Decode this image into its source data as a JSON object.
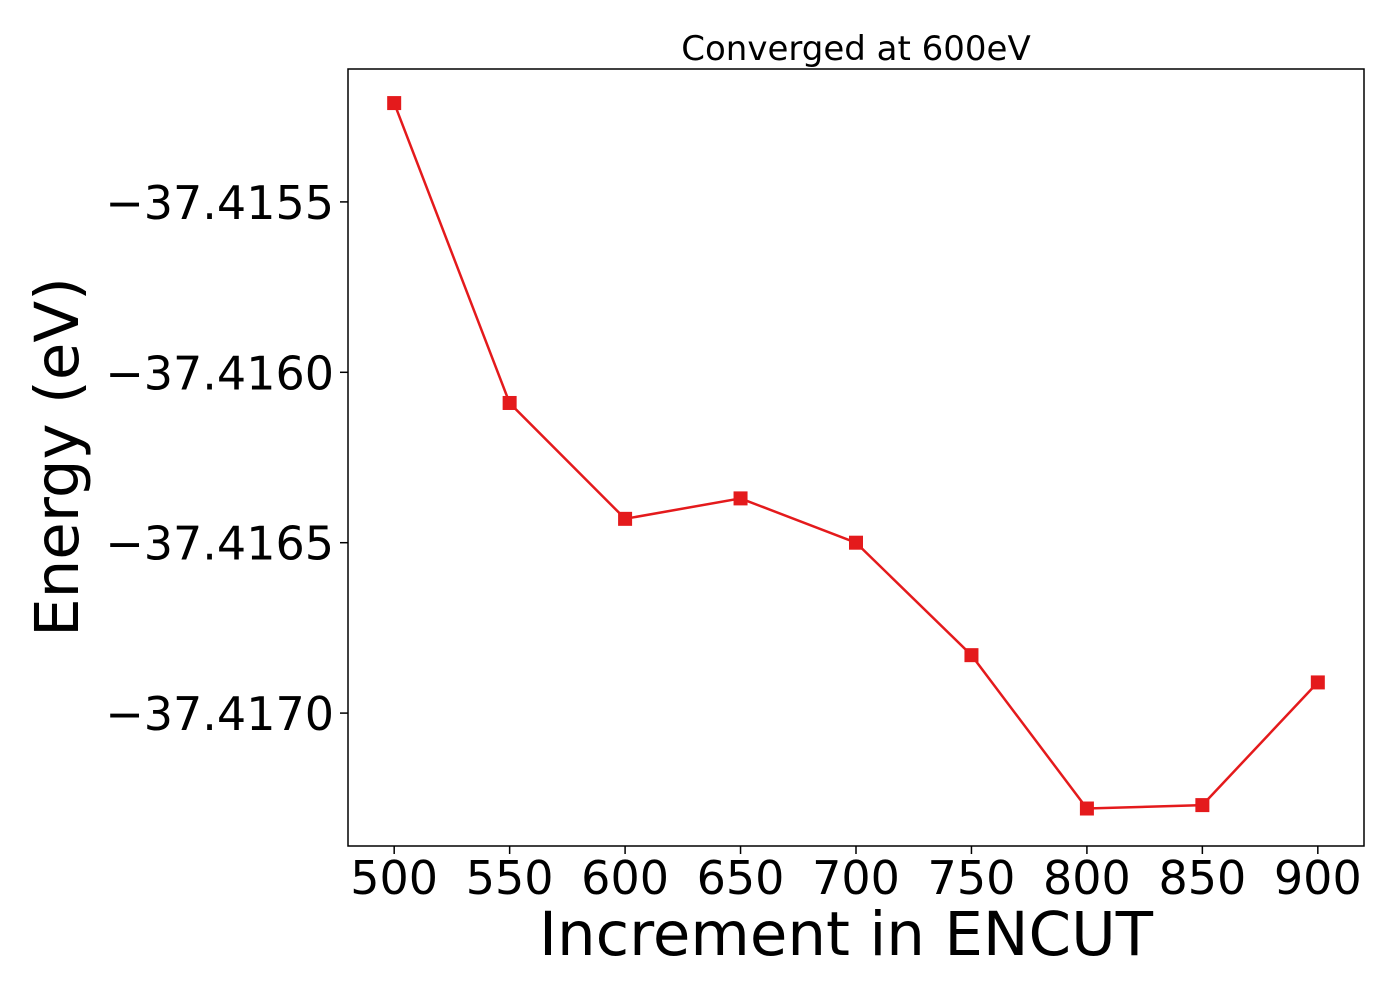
{
  "chart_data": {
    "type": "line",
    "title": "Converged at 600eV",
    "xlabel": "Increment in ENCUT",
    "ylabel": "Energy (eV)",
    "x": [
      500,
      550,
      600,
      650,
      700,
      750,
      800,
      850,
      900
    ],
    "series": [
      {
        "values": [
          -37.41521,
          -37.41609,
          -37.41643,
          -37.41637,
          -37.4165,
          -37.41683,
          -37.41728,
          -37.41727,
          -37.41691
        ],
        "color": "#e41a1c",
        "marker": "square"
      }
    ],
    "xticks": [
      500,
      550,
      600,
      650,
      700,
      750,
      800,
      850,
      900
    ],
    "xtick_labels": [
      "500",
      "550",
      "600",
      "650",
      "700",
      "750",
      "800",
      "850",
      "900"
    ],
    "yticks": [
      -37.4155,
      -37.416,
      -37.4165,
      -37.417
    ],
    "ytick_labels": [
      "−37.4155",
      "−37.4160",
      "−37.4165",
      "−37.4170"
    ],
    "xlim": [
      480,
      920
    ],
    "ylim": [
      -37.41739,
      -37.41511
    ],
    "grid": false,
    "legend": "none"
  }
}
